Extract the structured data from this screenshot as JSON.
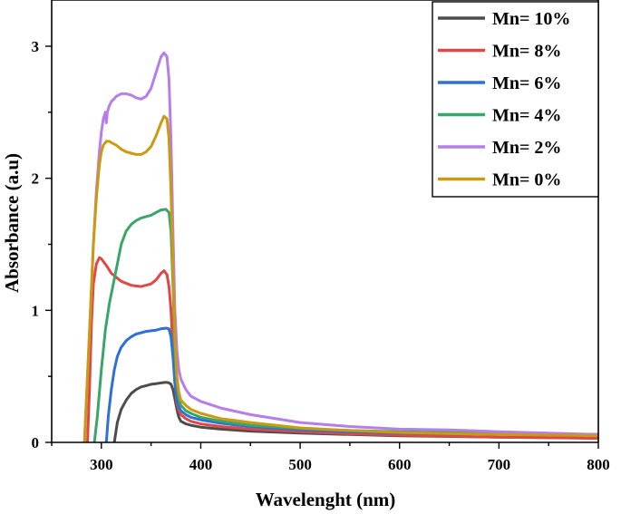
{
  "chart_data": {
    "type": "line",
    "title": "",
    "xlabel": "Wavelenght (nm)",
    "ylabel": "Absorbance (a.u)",
    "xlim": [
      250,
      800
    ],
    "ylim": [
      0,
      3.35
    ],
    "xticks": [
      300,
      400,
      500,
      600,
      700,
      800
    ],
    "yticks": [
      0,
      1,
      2,
      3
    ],
    "grid": false,
    "legend_position": "top-right",
    "series": [
      {
        "name": "Mn= 10%",
        "color": "#4d4d4d",
        "x": [
          313,
          316,
          320,
          325,
          330,
          335,
          340,
          345,
          350,
          355,
          360,
          365,
          368,
          370,
          372,
          374,
          376,
          378,
          380,
          385,
          390,
          400,
          420,
          450,
          500,
          550,
          600,
          700,
          800
        ],
        "y": [
          0,
          0.15,
          0.25,
          0.32,
          0.37,
          0.4,
          0.42,
          0.43,
          0.44,
          0.445,
          0.45,
          0.455,
          0.45,
          0.44,
          0.4,
          0.33,
          0.25,
          0.19,
          0.16,
          0.14,
          0.13,
          0.115,
          0.1,
          0.085,
          0.07,
          0.06,
          0.05,
          0.04,
          0.035
        ]
      },
      {
        "name": "Mn= 8%",
        "color": "#e04848",
        "x": [
          286,
          288,
          290,
          292,
          295,
          298,
          300,
          305,
          310,
          320,
          330,
          340,
          350,
          355,
          360,
          363,
          366,
          368,
          370,
          372,
          374,
          376,
          378,
          380,
          385,
          390,
          400,
          420,
          450,
          500,
          550,
          600,
          700,
          800
        ],
        "y": [
          0,
          0.4,
          0.9,
          1.2,
          1.35,
          1.4,
          1.39,
          1.34,
          1.28,
          1.22,
          1.19,
          1.18,
          1.2,
          1.23,
          1.28,
          1.3,
          1.27,
          1.18,
          1.0,
          0.7,
          0.45,
          0.3,
          0.24,
          0.21,
          0.18,
          0.16,
          0.14,
          0.12,
          0.1,
          0.08,
          0.065,
          0.055,
          0.04,
          0.03
        ]
      },
      {
        "name": "Mn= 6%",
        "color": "#2e6fd8",
        "x": [
          305,
          307,
          310,
          313,
          316,
          320,
          325,
          330,
          335,
          340,
          345,
          350,
          355,
          360,
          365,
          368,
          370,
          372,
          374,
          376,
          378,
          380,
          385,
          390,
          400,
          420,
          450,
          500,
          550,
          600,
          700,
          800
        ],
        "y": [
          0,
          0.2,
          0.4,
          0.55,
          0.65,
          0.72,
          0.77,
          0.8,
          0.82,
          0.83,
          0.84,
          0.845,
          0.85,
          0.86,
          0.865,
          0.86,
          0.8,
          0.65,
          0.45,
          0.33,
          0.27,
          0.24,
          0.21,
          0.19,
          0.17,
          0.145,
          0.12,
          0.095,
          0.08,
          0.07,
          0.065,
          0.06
        ]
      },
      {
        "name": "Mn= 4%",
        "color": "#3aa56a",
        "x": [
          293,
          296,
          300,
          304,
          308,
          312,
          316,
          320,
          325,
          330,
          335,
          340,
          345,
          350,
          355,
          360,
          365,
          368,
          370,
          372,
          374,
          376,
          378,
          380,
          385,
          390,
          400,
          420,
          450,
          500,
          550,
          600,
          700,
          800
        ],
        "y": [
          0,
          0.2,
          0.55,
          0.85,
          1.05,
          1.2,
          1.35,
          1.5,
          1.6,
          1.65,
          1.68,
          1.7,
          1.71,
          1.72,
          1.74,
          1.76,
          1.765,
          1.74,
          1.6,
          1.2,
          0.7,
          0.45,
          0.33,
          0.28,
          0.24,
          0.22,
          0.19,
          0.16,
          0.13,
          0.105,
          0.09,
          0.08,
          0.07,
          0.06
        ]
      },
      {
        "name": "Mn= 2%",
        "color": "#b57ee8",
        "x": [
          283,
          286,
          289,
          292,
          295,
          298,
          300,
          302,
          304,
          305,
          306,
          308,
          310,
          315,
          320,
          325,
          330,
          335,
          340,
          345,
          350,
          355,
          360,
          363,
          366,
          368,
          370,
          372,
          374,
          376,
          378,
          380,
          385,
          390,
          400,
          420,
          450,
          500,
          550,
          600,
          650,
          700,
          800
        ],
        "y": [
          0,
          0.5,
          1.0,
          1.5,
          1.9,
          2.2,
          2.35,
          2.45,
          2.5,
          2.42,
          2.5,
          2.55,
          2.58,
          2.62,
          2.64,
          2.64,
          2.63,
          2.61,
          2.6,
          2.62,
          2.68,
          2.8,
          2.92,
          2.95,
          2.92,
          2.75,
          2.3,
          1.6,
          1.0,
          0.7,
          0.55,
          0.48,
          0.4,
          0.35,
          0.31,
          0.26,
          0.21,
          0.15,
          0.12,
          0.1,
          0.095,
          0.08,
          0.06
        ]
      },
      {
        "name": "Mn= 0%",
        "color": "#cc9a10",
        "x": [
          283,
          286,
          289,
          292,
          295,
          298,
          300,
          302,
          305,
          308,
          310,
          315,
          320,
          325,
          330,
          335,
          340,
          345,
          350,
          355,
          360,
          363,
          366,
          368,
          370,
          372,
          374,
          376,
          378,
          380,
          385,
          390,
          400,
          420,
          450,
          500,
          550,
          600,
          700,
          800
        ],
        "y": [
          0,
          0.5,
          1.0,
          1.5,
          1.85,
          2.1,
          2.2,
          2.25,
          2.28,
          2.28,
          2.27,
          2.25,
          2.22,
          2.2,
          2.19,
          2.18,
          2.18,
          2.2,
          2.24,
          2.32,
          2.42,
          2.47,
          2.45,
          2.3,
          1.9,
          1.3,
          0.8,
          0.5,
          0.38,
          0.32,
          0.28,
          0.25,
          0.22,
          0.18,
          0.15,
          0.11,
          0.09,
          0.075,
          0.06,
          0.05
        ]
      }
    ],
    "legend_order": [
      0,
      1,
      2,
      3,
      4,
      5
    ]
  }
}
